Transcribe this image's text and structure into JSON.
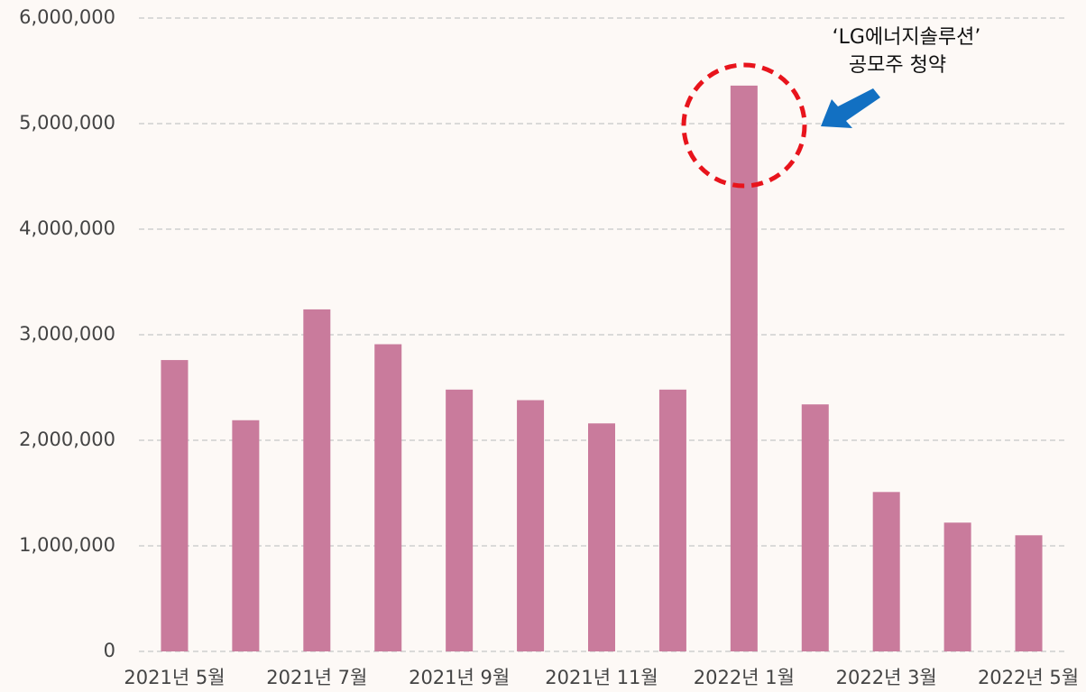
{
  "chart_data": {
    "type": "bar",
    "categories": [
      "2021년 5월",
      null,
      "2021년 7월",
      null,
      "2021년 9월",
      null,
      "2021년 11월",
      null,
      "2022년 1월",
      null,
      "2022년 3월",
      null,
      "2022년 5월"
    ],
    "values": [
      2760000,
      2190000,
      3240000,
      2910000,
      2480000,
      2380000,
      2160000,
      2480000,
      5360000,
      2340000,
      1510000,
      1220000,
      1100000
    ],
    "color": "#c97b9c",
    "ylim": [
      0,
      6000000
    ],
    "yticks": [
      0,
      {
        "value": 1000000,
        "label": "1,000,000"
      },
      {
        "value": 2000000,
        "label": "2,000,000"
      },
      {
        "value": 3000000,
        "label": "3,000,000"
      },
      {
        "value": 4000000,
        "label": "4,000,000"
      },
      {
        "value": 5000000,
        "label": "5,000,000"
      },
      {
        "value": 6000000,
        "label": "6,000,000"
      }
    ],
    "grid": true,
    "annotation": [
      "‘LG에너지솔루션’",
      "공모주 청약"
    ]
  }
}
